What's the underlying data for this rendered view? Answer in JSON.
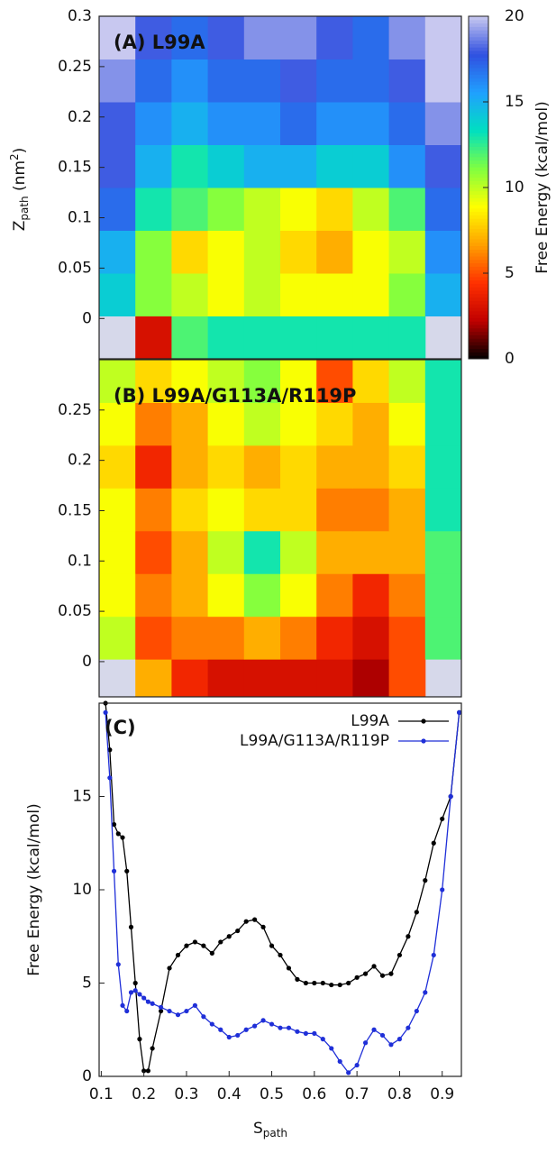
{
  "chart_data": [
    {
      "type": "heatmap",
      "title": "(A) L99A",
      "ylabel": {
        "base": "Z",
        "sub": "path",
        "rest": " (nm",
        "sup": "2",
        "end": ")"
      },
      "xlim": [
        0.095,
        0.945
      ],
      "ylim": [
        -0.04,
        0.3
      ],
      "yticks": [
        0,
        0.05,
        0.1,
        0.15,
        0.2,
        0.25,
        0.3
      ],
      "xbins": [
        0.095,
        0.18,
        0.265,
        0.35,
        0.435,
        0.52,
        0.605,
        0.69,
        0.775,
        0.86,
        0.945
      ],
      "ybins": [
        -0.04,
        0.0025,
        0.045,
        0.0875,
        0.13,
        0.1725,
        0.215,
        0.2575,
        0.3
      ],
      "values": [
        [
          null,
          3,
          12,
          13,
          13,
          13,
          13,
          13,
          13,
          null
        ],
        [
          14,
          11,
          10,
          9,
          10,
          9,
          9,
          9,
          11,
          15
        ],
        [
          15,
          11,
          8,
          9,
          10,
          8,
          7,
          9,
          10,
          16
        ],
        [
          17,
          13,
          12,
          11,
          10,
          9,
          8,
          10,
          12,
          17
        ],
        [
          18,
          15,
          13,
          14,
          15,
          15,
          14,
          14,
          16,
          18
        ],
        [
          18,
          16,
          15,
          16,
          16,
          17,
          16,
          16,
          17,
          19
        ],
        [
          19,
          17,
          16,
          17,
          17,
          18,
          17,
          17,
          18,
          20
        ],
        [
          20,
          18,
          17,
          18,
          19,
          19,
          18,
          17,
          19,
          20
        ]
      ],
      "zlim": [
        0,
        20
      ],
      "colormap": [
        "#000000",
        "#c00000",
        "#ff3000",
        "#ffa000",
        "#ffff00",
        "#80ff40",
        "#00e0c0",
        "#20a0ff",
        "#3050e0",
        "#c8c8f0"
      ],
      "colorbar": {
        "label": "Free Energy (kcal/mol)",
        "ticks": [
          0,
          5,
          10,
          15,
          20
        ]
      }
    },
    {
      "type": "heatmap",
      "title": "(B) L99A/G113A/R119P",
      "xlim": [
        0.095,
        0.945
      ],
      "ylim": [
        -0.035,
        0.3
      ],
      "yticks": [
        0,
        0.05,
        0.1,
        0.15,
        0.2,
        0.25
      ],
      "xbins": [
        0.095,
        0.18,
        0.265,
        0.35,
        0.435,
        0.52,
        0.605,
        0.69,
        0.775,
        0.86,
        0.945
      ],
      "ybins": [
        -0.035,
        0.0025,
        0.045,
        0.0875,
        0.13,
        0.1725,
        0.215,
        0.2575,
        0.3
      ],
      "values": [
        [
          null,
          7,
          4,
          3,
          3,
          3,
          3,
          2,
          5,
          null
        ],
        [
          10,
          5,
          6,
          6,
          7,
          6,
          4,
          3,
          5,
          12
        ],
        [
          9,
          6,
          7,
          9,
          11,
          9,
          6,
          4,
          6,
          12
        ],
        [
          9,
          5,
          7,
          10,
          13,
          10,
          7,
          7,
          7,
          12
        ],
        [
          9,
          6,
          8,
          9,
          8,
          8,
          6,
          6,
          7,
          13
        ],
        [
          8,
          4,
          7,
          8,
          7,
          8,
          7,
          7,
          8,
          13
        ],
        [
          9,
          6,
          7,
          9,
          10,
          9,
          8,
          7,
          9,
          13
        ],
        [
          10,
          8,
          9,
          10,
          11,
          9,
          5,
          8,
          10,
          13
        ]
      ],
      "zlim": [
        0,
        20
      ],
      "colormap": [
        "#000000",
        "#c00000",
        "#ff3000",
        "#ffa000",
        "#ffff00",
        "#80ff40",
        "#00e0c0",
        "#20a0ff",
        "#3050e0",
        "#c8c8f0"
      ]
    },
    {
      "type": "line",
      "title": "(C)",
      "xlabel": {
        "base": "S",
        "sub": "path"
      },
      "ylabel": "Free Energy (kcal/mol)",
      "xlim": [
        0.095,
        0.945
      ],
      "ylim": [
        0,
        20
      ],
      "xticks": [
        0.1,
        0.2,
        0.3,
        0.4,
        0.5,
        0.6,
        0.7,
        0.8,
        0.9
      ],
      "yticks": [
        0,
        5,
        10,
        15
      ],
      "legend": "upper right",
      "x": [
        0.11,
        0.12,
        0.13,
        0.14,
        0.15,
        0.16,
        0.17,
        0.18,
        0.19,
        0.2,
        0.21,
        0.22,
        0.24,
        0.26,
        0.28,
        0.3,
        0.32,
        0.34,
        0.36,
        0.38,
        0.4,
        0.42,
        0.44,
        0.46,
        0.48,
        0.5,
        0.52,
        0.54,
        0.56,
        0.58,
        0.6,
        0.62,
        0.64,
        0.66,
        0.68,
        0.7,
        0.72,
        0.74,
        0.76,
        0.78,
        0.8,
        0.82,
        0.84,
        0.86,
        0.88,
        0.9,
        0.92,
        0.94
      ],
      "series": [
        {
          "name": "L99A",
          "color": "#000000",
          "values": [
            20,
            17.5,
            13.5,
            13,
            12.8,
            11,
            8,
            5,
            2,
            0.3,
            0.3,
            1.5,
            3.5,
            5.8,
            6.5,
            7,
            7.2,
            7,
            6.6,
            7.2,
            7.5,
            7.8,
            8.3,
            8.4,
            8,
            7,
            6.5,
            5.8,
            5.2,
            5,
            5,
            5,
            4.9,
            4.9,
            5,
            5.3,
            5.5,
            5.9,
            5.4,
            5.5,
            6.5,
            7.5,
            8.8,
            10.5,
            12.5,
            13.8,
            15,
            19.5
          ]
        },
        {
          "name": "L99A/G113A/R119P",
          "color": "#1f2fd8",
          "values": [
            19.5,
            16,
            11,
            6,
            3.8,
            3.5,
            4.5,
            4.6,
            4.4,
            4.2,
            4,
            3.9,
            3.7,
            3.5,
            3.3,
            3.5,
            3.8,
            3.2,
            2.8,
            2.5,
            2.1,
            2.2,
            2.5,
            2.7,
            3,
            2.8,
            2.6,
            2.6,
            2.4,
            2.3,
            2.3,
            2,
            1.5,
            0.8,
            0.2,
            0.6,
            1.8,
            2.5,
            2.2,
            1.7,
            2,
            2.6,
            3.5,
            4.5,
            6.5,
            10,
            15,
            19.5
          ]
        }
      ]
    }
  ]
}
